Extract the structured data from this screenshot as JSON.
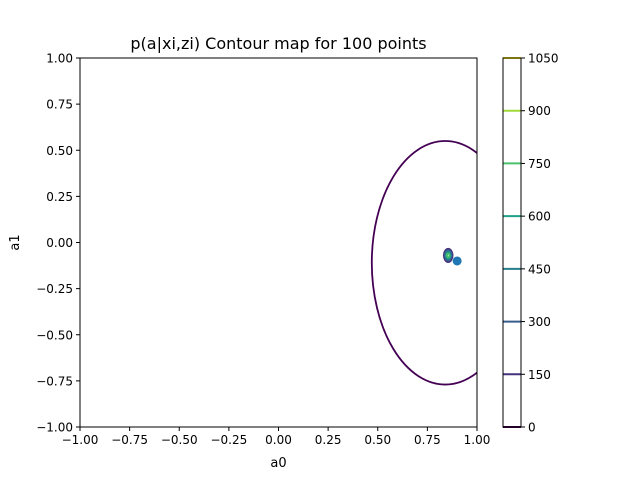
{
  "chart_data": {
    "type": "contour",
    "title": "p(a|xi,zi) Contour map for 100 points",
    "xlabel": "a0",
    "ylabel": "a1",
    "xlim": [
      -1.0,
      1.0
    ],
    "ylim": [
      -1.0,
      1.0
    ],
    "x_ticks": [
      -1.0,
      -0.75,
      -0.5,
      -0.25,
      0.0,
      0.25,
      0.5,
      0.75,
      1.0
    ],
    "x_tick_labels": [
      "−1.00",
      "−0.75",
      "−0.50",
      "−0.25",
      "0.00",
      "0.25",
      "0.50",
      "0.75",
      "1.00"
    ],
    "y_ticks": [
      -1.0,
      -0.75,
      -0.5,
      -0.25,
      0.0,
      0.25,
      0.5,
      0.75,
      1.0
    ],
    "y_tick_labels": [
      "−1.00",
      "−0.75",
      "−0.50",
      "−0.25",
      "0.00",
      "0.25",
      "0.50",
      "0.75",
      "1.00"
    ],
    "grid": false,
    "colorbar": {
      "position": "right",
      "ticks": [
        0,
        150,
        300,
        450,
        600,
        750,
        900,
        1050
      ],
      "tick_labels": [
        "0",
        "150",
        "300",
        "450",
        "600",
        "750",
        "900",
        "1050"
      ],
      "level_colors": [
        "#440154",
        "#46327e",
        "#365c8d",
        "#277f8e",
        "#1fa187",
        "#4ac16d",
        "#a0da39",
        "#fde725"
      ]
    },
    "contours": [
      {
        "level": 0,
        "color": "#440154",
        "center": [
          0.84,
          -0.11
        ],
        "rx": 0.37,
        "ry": 0.66
      },
      {
        "level": 150,
        "color": "#46327e",
        "center": [
          0.855,
          -0.07
        ],
        "rx": 0.022,
        "ry": 0.036
      },
      {
        "level": 300,
        "color": "#365c8d",
        "center": [
          0.855,
          -0.07
        ],
        "rx": 0.017,
        "ry": 0.028
      },
      {
        "level": 450,
        "color": "#277f8e",
        "center": [
          0.855,
          -0.07
        ],
        "rx": 0.013,
        "ry": 0.021
      },
      {
        "level": 600,
        "color": "#1fa187",
        "center": [
          0.855,
          -0.07
        ],
        "rx": 0.009,
        "ry": 0.015
      },
      {
        "level": 750,
        "color": "#4ac16d",
        "center": [
          0.855,
          -0.07
        ],
        "rx": 0.006,
        "ry": 0.009
      }
    ],
    "markers": [
      {
        "x": 0.9,
        "y": -0.1,
        "color": "#1f77b4"
      }
    ]
  }
}
